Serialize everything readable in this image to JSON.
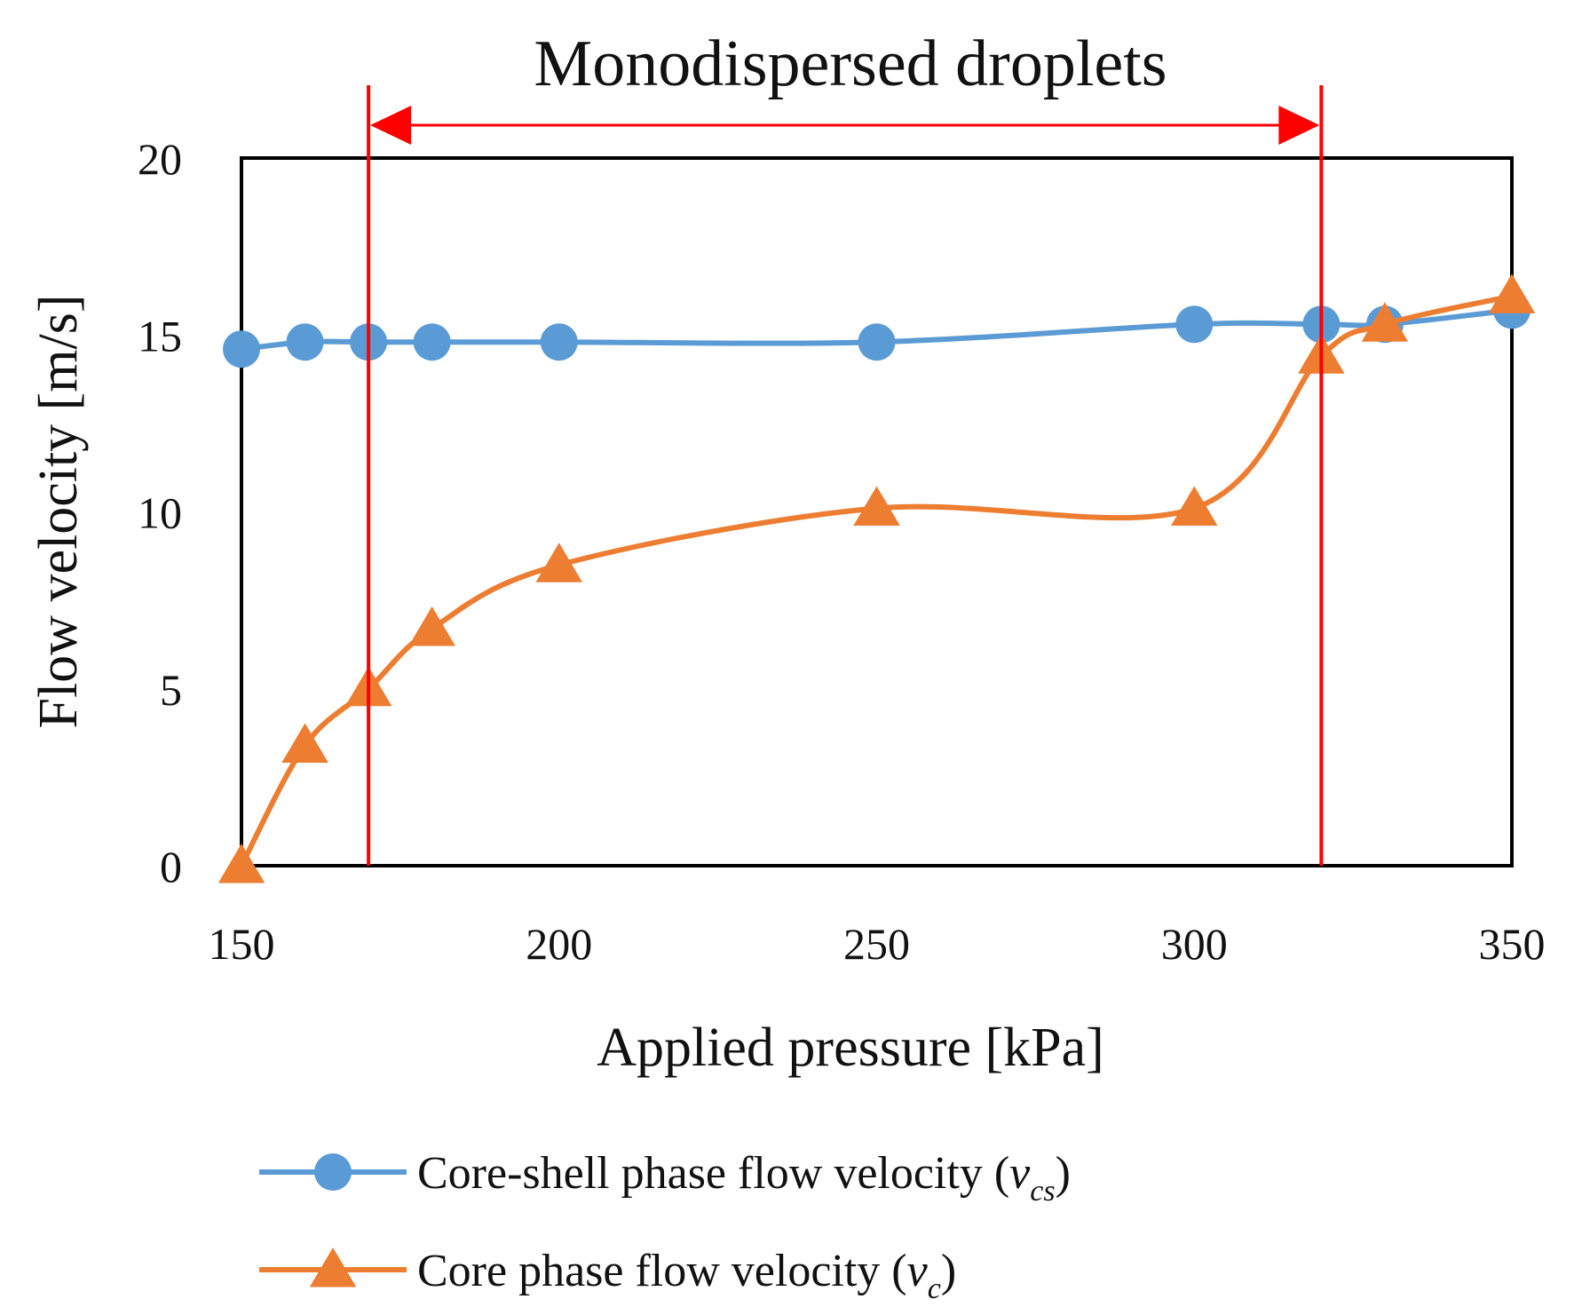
{
  "chart_data": {
    "type": "line",
    "xlabel": "Applied pressure [kPa]",
    "ylabel": "Flow velocity [m/s]",
    "xlim": [
      150,
      350
    ],
    "ylim": [
      0,
      20
    ],
    "x_ticks": [
      150,
      200,
      250,
      300,
      350
    ],
    "y_ticks": [
      0,
      5,
      10,
      15,
      20
    ],
    "grid": false,
    "legend_position": "bottom",
    "smooth_lines": true,
    "series": [
      {
        "name_prefix": "Core-shell phase flow velocity (",
        "name_symbol": "v",
        "name_subscript": "cs",
        "name_suffix": ")",
        "marker": "circle",
        "color": "#5B9BD5",
        "x": [
          150,
          160,
          170,
          180,
          200,
          250,
          300,
          320,
          330,
          350
        ],
        "y": [
          14.6,
          14.8,
          14.8,
          14.8,
          14.8,
          14.8,
          15.3,
          15.3,
          15.3,
          15.7
        ]
      },
      {
        "name_prefix": "Core phase flow velocity (",
        "name_symbol": "v",
        "name_subscript": "c",
        "name_suffix": ")",
        "marker": "triangle",
        "color": "#ED7D31",
        "x": [
          150,
          160,
          170,
          180,
          200,
          250,
          300,
          320,
          330,
          350
        ],
        "y": [
          0,
          3.4,
          5.0,
          6.7,
          8.5,
          10.1,
          10.1,
          14.4,
          15.3,
          16.1
        ]
      }
    ],
    "annotation": {
      "text": "Monodispersed droplets",
      "x_start": 170,
      "x_end": 320,
      "color": "#FF0000"
    }
  }
}
